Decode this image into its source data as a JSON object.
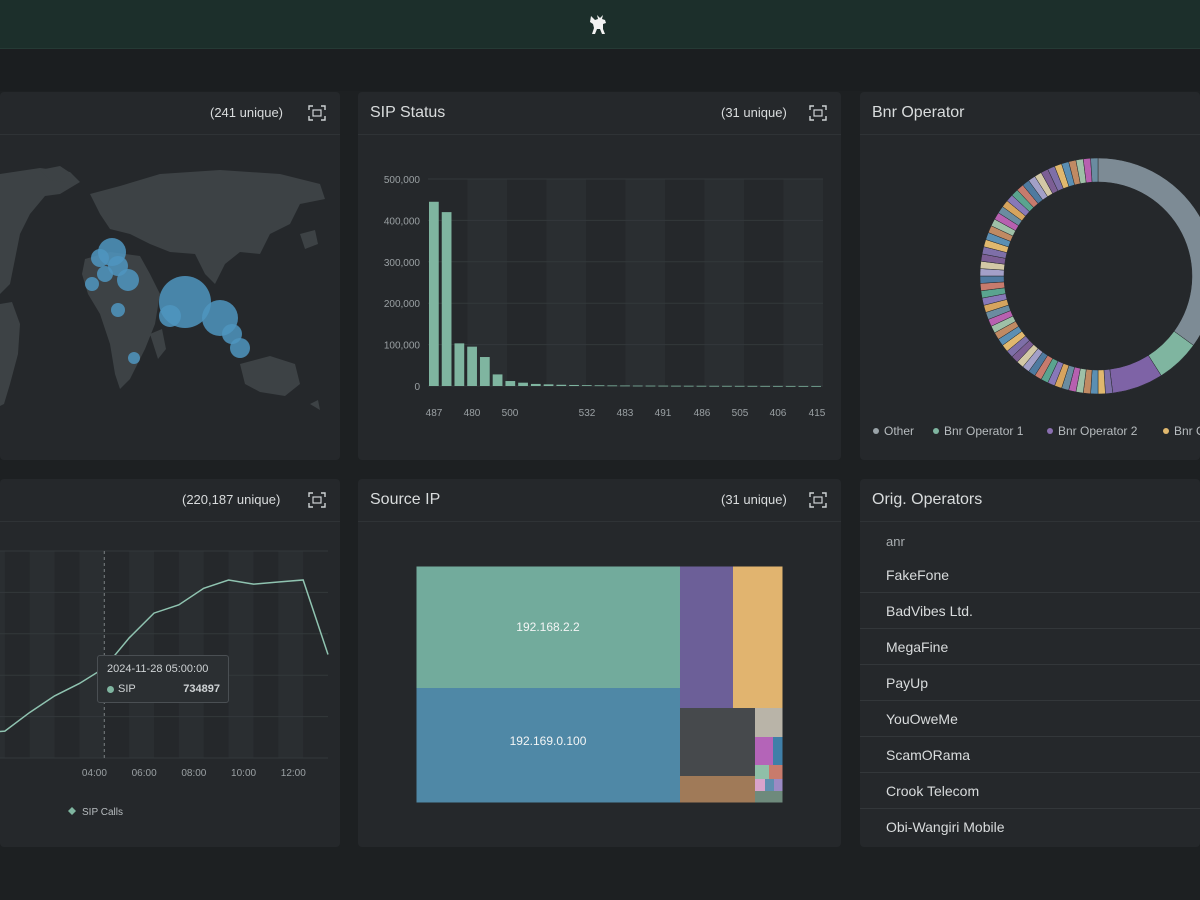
{
  "colors": {
    "accent": "#7fb5a0",
    "map_bubble": "#4f95bf",
    "header_bg": "#1c2f2b",
    "panel_bg": "#25282b",
    "page_bg": "#1d2022"
  },
  "header": {
    "logo_icon": "goat-logo-icon"
  },
  "map_panel": {
    "count": "(241 unique)",
    "icons": {
      "expand": "expand-icon"
    }
  },
  "sip_status": {
    "title": "SIP Status",
    "count": "(31 unique)",
    "chart_data": {
      "type": "bar",
      "ylim": [
        0,
        500000
      ],
      "y_ticks": [
        "500,000",
        "400,000",
        "300,000",
        "200,000",
        "100,000",
        "0"
      ],
      "x_tick_labels": [
        "487",
        "480",
        "500",
        "532",
        "483",
        "491",
        "486",
        "505",
        "406",
        "415"
      ],
      "values": [
        445000,
        420000,
        103000,
        95000,
        70000,
        28000,
        12000,
        8000,
        5000,
        4000,
        3000,
        2500,
        2000,
        1700,
        1400,
        1200,
        1000,
        900,
        800,
        700,
        600,
        500,
        450,
        400,
        350,
        300,
        250,
        200,
        150,
        120,
        100
      ],
      "grid": true
    }
  },
  "bnr_operator": {
    "title": "Bnr Operator",
    "legend": [
      "Other",
      "Bnr Operator 1",
      "Bnr Operator 2",
      "Bnr O"
    ],
    "legend_colors": [
      "#9aa3a8",
      "#7fb5a0",
      "#8a6fb0",
      "#e0b86e"
    ],
    "chart_data": {
      "type": "pie",
      "slices": [
        {
          "label": "Other",
          "value": 35,
          "color": "#7d8b95"
        },
        {
          "label": "Bnr Operator 1",
          "value": 6,
          "color": "#7fb5a0"
        },
        {
          "label": "Bnr Operator 2",
          "value": 7,
          "color": "#7e63a6"
        }
      ],
      "other_small_slices": 52
    }
  },
  "sip_calls": {
    "count": "(220,187 unique)",
    "legend": "SIP Calls",
    "x_ticks": [
      "04:00",
      "06:00",
      "08:00",
      "10:00",
      "12:00"
    ],
    "tooltip": {
      "time": "2024-11-28 05:00:00",
      "series": "SIP",
      "value": "734897"
    },
    "chart_data": {
      "type": "line",
      "x": [
        "00:00",
        "01:00",
        "02:00",
        "03:00",
        "04:00",
        "05:00",
        "06:00",
        "07:00",
        "08:00",
        "09:00",
        "10:00",
        "11:00",
        "12:00",
        "13:00",
        "14:00"
      ],
      "values": [
        420000,
        430000,
        520000,
        600000,
        660000,
        734897,
        880000,
        1000000,
        1040000,
        1120000,
        1160000,
        1140000,
        1150000,
        1160000,
        800000
      ],
      "ylim": [
        300000,
        1300000
      ]
    }
  },
  "source_ip": {
    "title": "Source IP",
    "count": "(31 unique)",
    "labels": {
      "ip1": "192.168.2.2",
      "ip2": "192.169.0.100"
    }
  },
  "orig_operators": {
    "title": "Orig. Operators",
    "filter": "anr",
    "items": [
      "FakeFone",
      "BadVibes Ltd.",
      "MegaFine",
      "PayUp",
      "YouOweMe",
      "ScamORama",
      "Crook Telecom",
      "Obi-Wangiri Mobile"
    ]
  }
}
